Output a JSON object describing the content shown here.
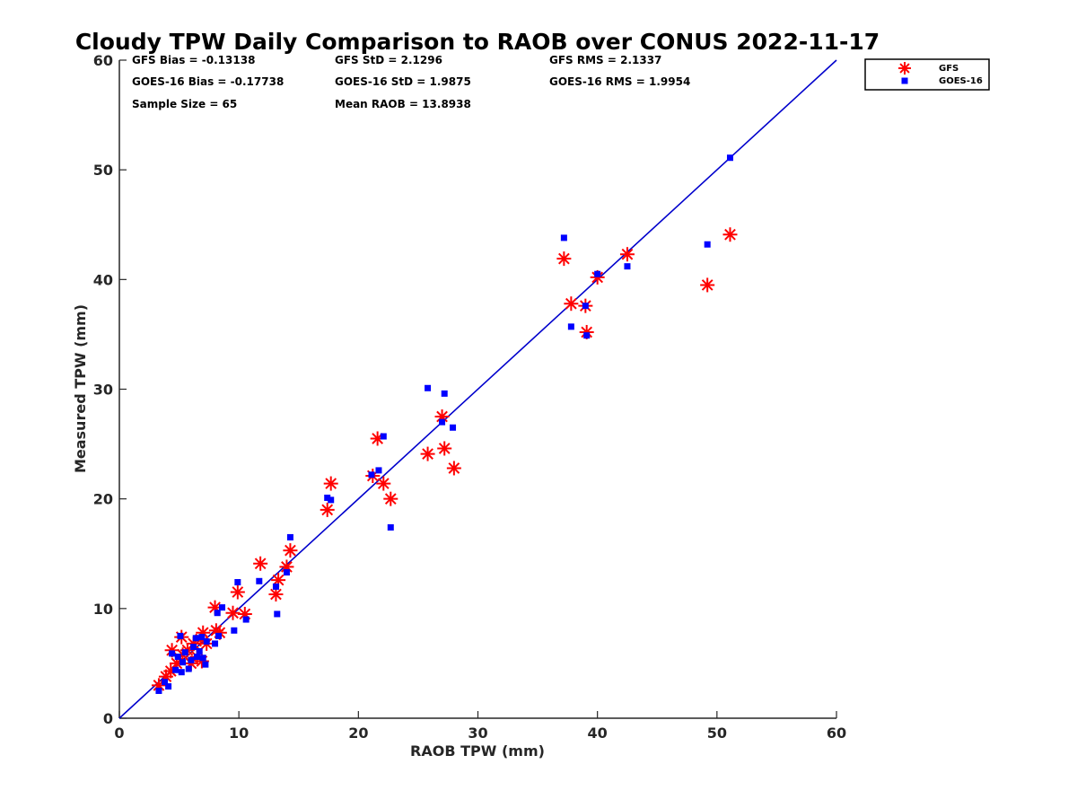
{
  "chart_data": {
    "type": "scatter",
    "title": "Cloudy TPW Daily Comparison to RAOB over CONUS 2022-11-17",
    "xlabel": "RAOB TPW (mm)",
    "ylabel": "Measured TPW (mm)",
    "xlim": [
      0,
      60
    ],
    "ylim": [
      0,
      60
    ],
    "xticks": [
      "0",
      "10",
      "20",
      "30",
      "40",
      "50",
      "60"
    ],
    "yticks": [
      "0",
      "10",
      "20",
      "30",
      "40",
      "50",
      "60"
    ],
    "grid": false,
    "legend_position": "outside-top-right",
    "reference_line": {
      "x": [
        0,
        60
      ],
      "y": [
        0,
        60
      ],
      "color": "#0000cc"
    },
    "stats": [
      "GFS Bias = -0.13138",
      "GFS StD = 2.1296",
      "GFS RMS = 2.1337",
      "GOES-16 Bias = -0.17738",
      "GOES-16 StD = 1.9875",
      "GOES-16 RMS = 1.9954",
      "Sample Size = 65",
      "Mean RAOB = 13.8938"
    ],
    "series": [
      {
        "name": "GFS",
        "marker": "asterisk",
        "color": "#ff0000",
        "points": [
          [
            3.3,
            3.0
          ],
          [
            3.9,
            3.8
          ],
          [
            4.3,
            4.3
          ],
          [
            4.4,
            6.2
          ],
          [
            4.8,
            5.0
          ],
          [
            5.2,
            7.4
          ],
          [
            5.3,
            5.8
          ],
          [
            5.7,
            6.2
          ],
          [
            6.0,
            5.0
          ],
          [
            6.2,
            6.8
          ],
          [
            6.5,
            5.6
          ],
          [
            6.8,
            7.2
          ],
          [
            6.9,
            5.2
          ],
          [
            7.0,
            7.8
          ],
          [
            7.3,
            6.8
          ],
          [
            8.0,
            10.1
          ],
          [
            8.1,
            8.0
          ],
          [
            8.4,
            7.8
          ],
          [
            9.5,
            9.6
          ],
          [
            9.9,
            11.5
          ],
          [
            10.5,
            9.5
          ],
          [
            11.8,
            14.1
          ],
          [
            13.1,
            11.3
          ],
          [
            13.3,
            12.6
          ],
          [
            14.0,
            13.8
          ],
          [
            14.3,
            15.3
          ],
          [
            17.4,
            19.0
          ],
          [
            17.7,
            21.4
          ],
          [
            21.2,
            22.1
          ],
          [
            21.6,
            25.5
          ],
          [
            22.1,
            21.4
          ],
          [
            22.7,
            20.0
          ],
          [
            25.8,
            24.1
          ],
          [
            27.0,
            27.5
          ],
          [
            27.2,
            24.6
          ],
          [
            28.0,
            22.8
          ],
          [
            37.2,
            41.9
          ],
          [
            37.8,
            37.8
          ],
          [
            39.0,
            37.6
          ],
          [
            39.1,
            35.2
          ],
          [
            40.0,
            40.2
          ],
          [
            42.5,
            42.3
          ],
          [
            49.2,
            39.5
          ],
          [
            51.1,
            44.1
          ]
        ]
      },
      {
        "name": "GOES-16",
        "marker": "square",
        "color": "#0000ff",
        "points": [
          [
            3.3,
            2.5
          ],
          [
            3.8,
            3.3
          ],
          [
            4.1,
            2.9
          ],
          [
            4.4,
            5.9
          ],
          [
            4.7,
            4.4
          ],
          [
            4.9,
            5.6
          ],
          [
            5.1,
            7.5
          ],
          [
            5.2,
            4.2
          ],
          [
            5.3,
            5.1
          ],
          [
            5.5,
            6.0
          ],
          [
            5.8,
            4.5
          ],
          [
            6.0,
            5.3
          ],
          [
            6.2,
            6.5
          ],
          [
            6.4,
            7.3
          ],
          [
            6.5,
            5.6
          ],
          [
            6.7,
            6.1
          ],
          [
            6.9,
            7.4
          ],
          [
            7.0,
            5.5
          ],
          [
            7.2,
            4.9
          ],
          [
            7.3,
            7.0
          ],
          [
            8.0,
            6.8
          ],
          [
            8.2,
            9.6
          ],
          [
            8.3,
            7.5
          ],
          [
            8.6,
            10.1
          ],
          [
            9.6,
            8.0
          ],
          [
            9.9,
            12.4
          ],
          [
            10.6,
            9.0
          ],
          [
            11.7,
            12.5
          ],
          [
            13.1,
            12.0
          ],
          [
            13.2,
            9.5
          ],
          [
            14.0,
            13.3
          ],
          [
            14.3,
            16.5
          ],
          [
            17.4,
            20.1
          ],
          [
            17.7,
            19.9
          ],
          [
            21.1,
            22.2
          ],
          [
            21.7,
            22.6
          ],
          [
            22.1,
            25.7
          ],
          [
            22.7,
            17.4
          ],
          [
            25.8,
            30.1
          ],
          [
            27.0,
            27.0
          ],
          [
            27.2,
            29.6
          ],
          [
            27.9,
            26.5
          ],
          [
            37.2,
            43.8
          ],
          [
            37.8,
            35.7
          ],
          [
            39.0,
            37.6
          ],
          [
            39.1,
            34.9
          ],
          [
            40.0,
            40.5
          ],
          [
            42.5,
            41.2
          ],
          [
            49.2,
            43.2
          ],
          [
            51.1,
            51.1
          ]
        ]
      }
    ]
  }
}
